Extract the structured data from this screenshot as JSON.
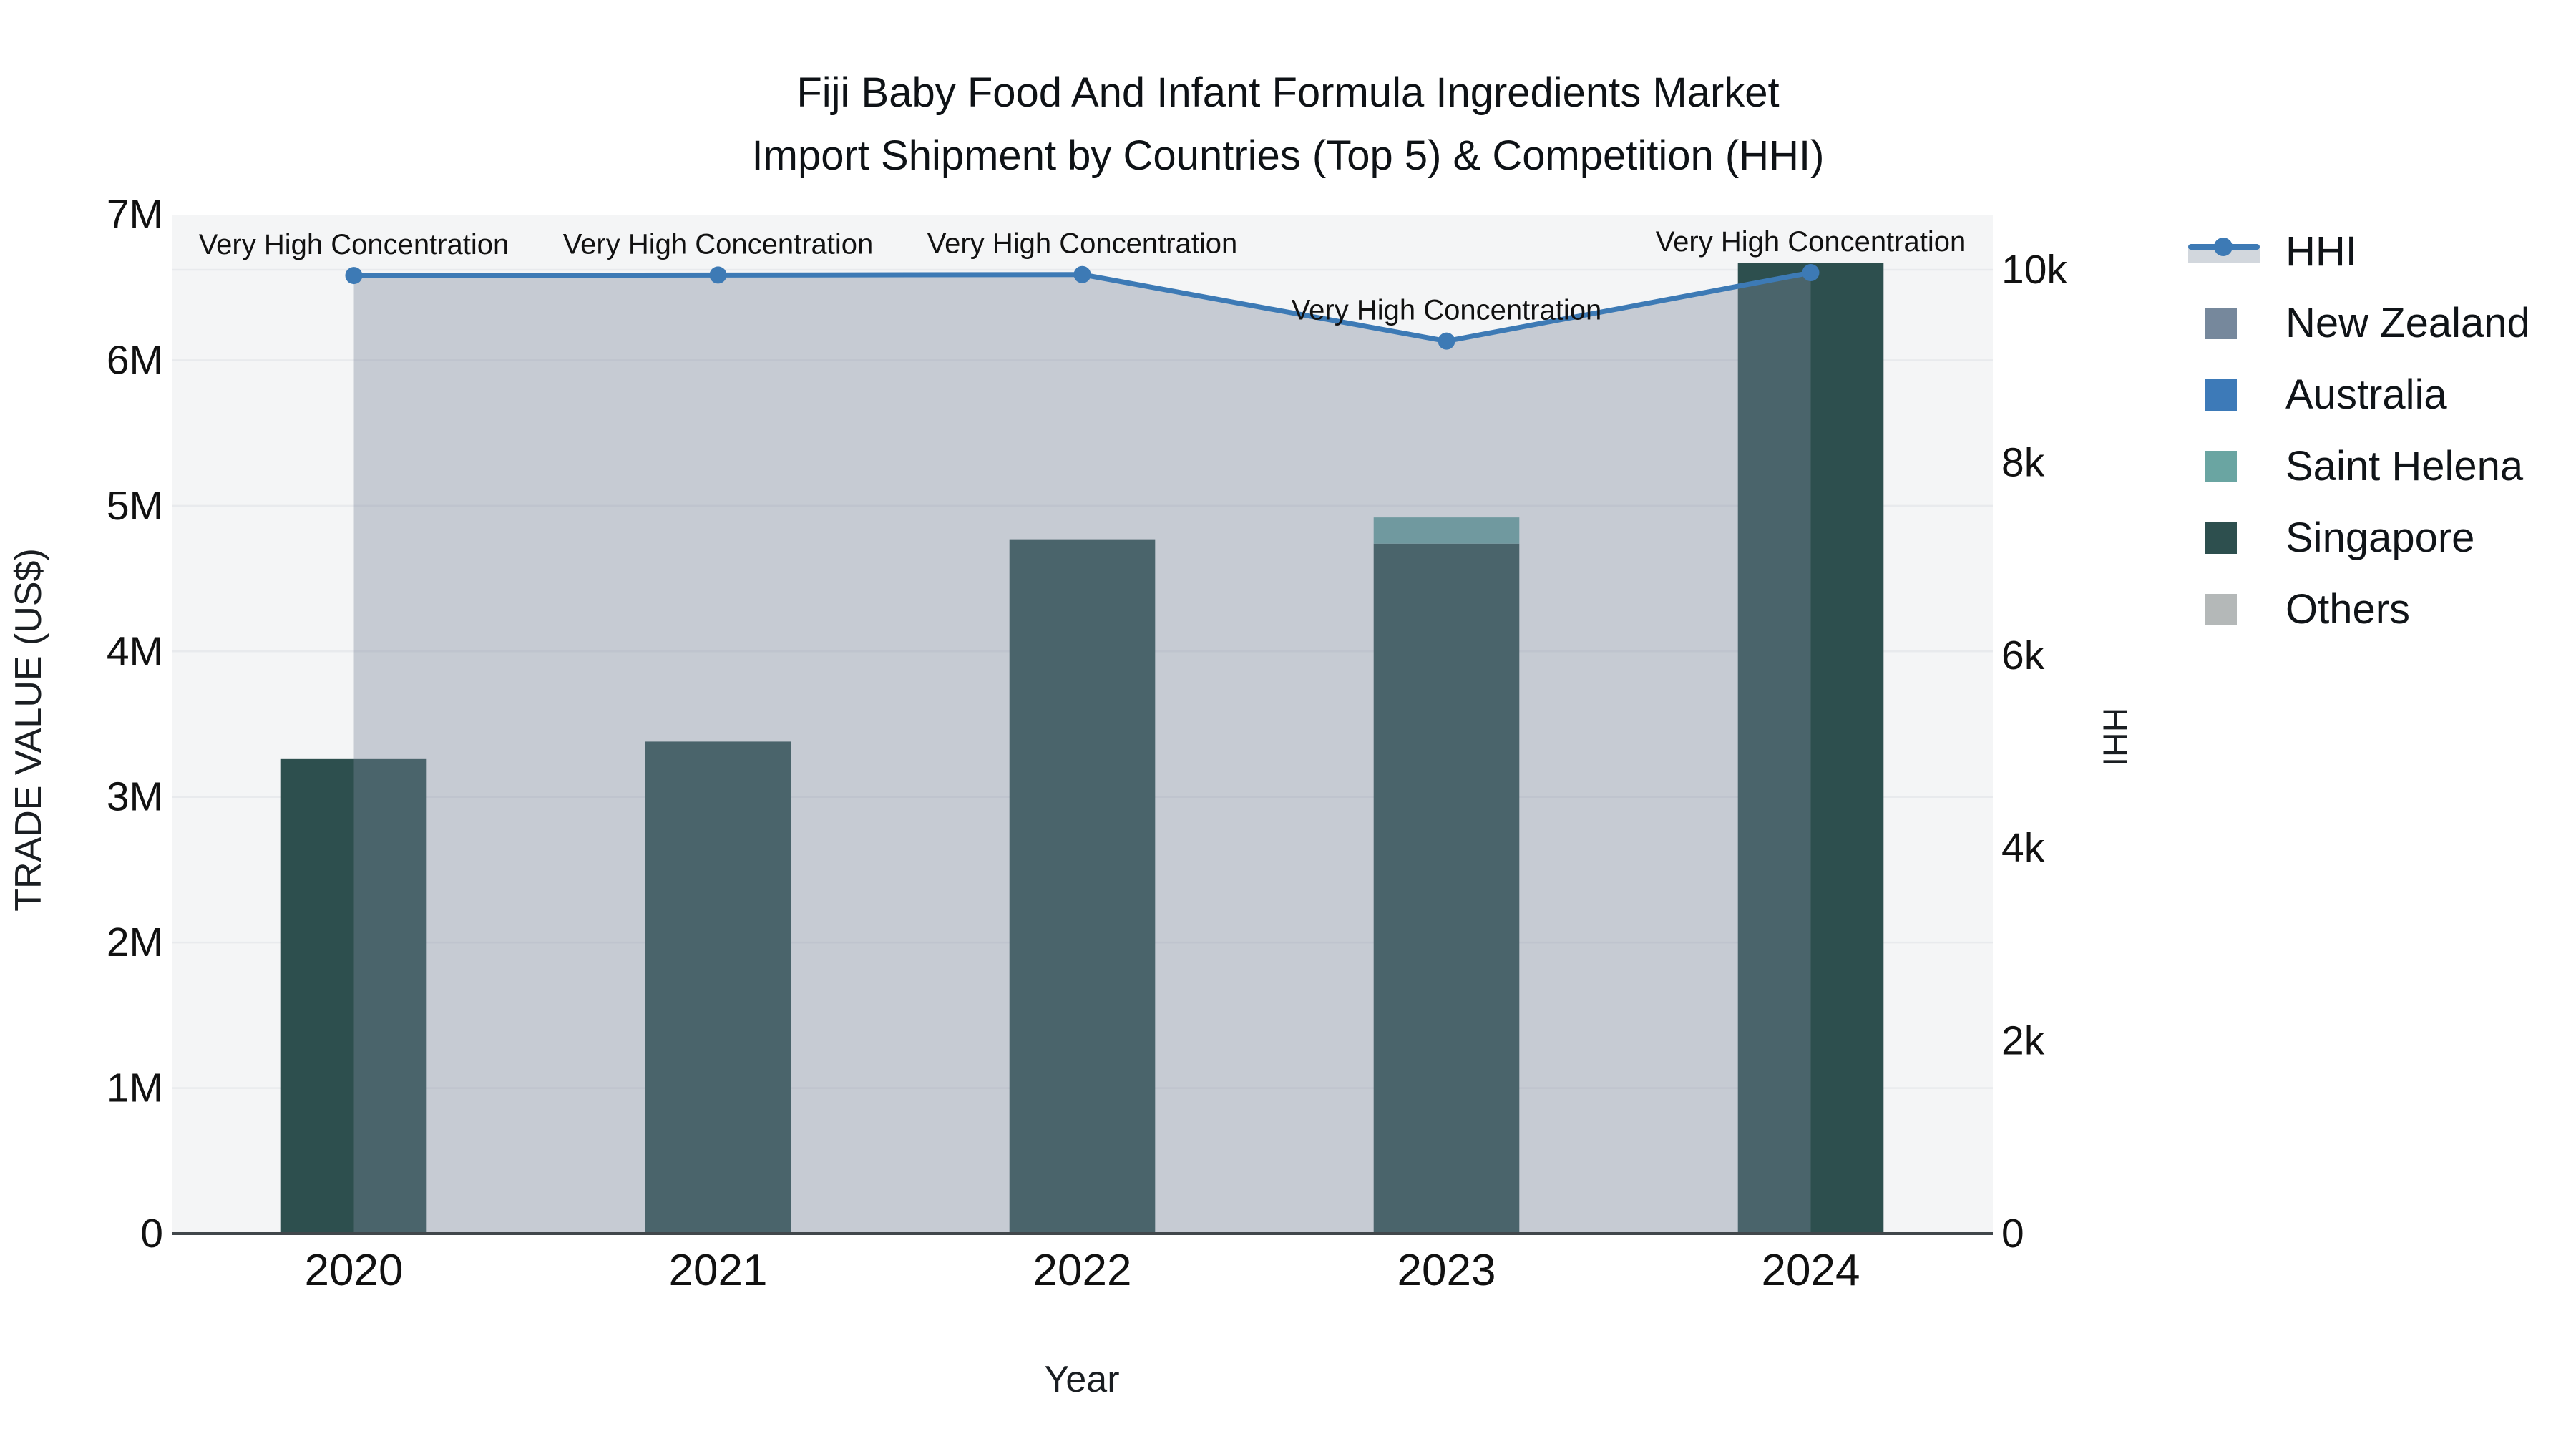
{
  "title": {
    "line1": "Fiji Baby Food And Infant Formula Ingredients Market",
    "line2": "Import Shipment by Countries (Top 5) & Competition (HHI)"
  },
  "axes": {
    "x": {
      "title": "Year"
    },
    "y_left": {
      "title": "TRADE VALUE (US$)",
      "tick_labels": [
        "0",
        "1M",
        "2M",
        "3M",
        "4M",
        "5M",
        "6M",
        "7M"
      ],
      "tick_values": [
        0,
        1000000,
        2000000,
        3000000,
        4000000,
        5000000,
        6000000,
        7000000
      ]
    },
    "y_right": {
      "title": "HHI",
      "tick_labels": [
        "0",
        "2k",
        "4k",
        "6k",
        "8k",
        "10k"
      ],
      "tick_values": [
        0,
        2000,
        4000,
        6000,
        8000,
        10000
      ]
    }
  },
  "legend": {
    "items": [
      {
        "label": "HHI",
        "type": "line",
        "color": "#3d7ab5"
      },
      {
        "label": "New Zealand",
        "type": "swatch",
        "color": "#76889c"
      },
      {
        "label": "Australia",
        "type": "swatch",
        "color": "#3d7ab8"
      },
      {
        "label": "Saint Helena",
        "type": "swatch",
        "color": "#6aa5a2"
      },
      {
        "label": "Singapore",
        "type": "swatch",
        "color": "#2d4f4e"
      },
      {
        "label": "Others",
        "type": "swatch",
        "color": "#b4b8b8"
      }
    ]
  },
  "chart_data": {
    "type": "bar+line",
    "categories": [
      "2020",
      "2021",
      "2022",
      "2023",
      "2024"
    ],
    "bar_stack_order_note": "bottom to top",
    "series": [
      {
        "name": "Singapore",
        "color": "#2d4f4e",
        "values": [
          3260000,
          3380000,
          4770000,
          4740000,
          6670000
        ]
      },
      {
        "name": "Saint Helena",
        "color": "#6aa5a2",
        "values": [
          0,
          0,
          0,
          180000,
          0
        ]
      },
      {
        "name": "New Zealand",
        "color": "#76889c",
        "values": [
          0,
          0,
          0,
          0,
          0
        ]
      },
      {
        "name": "Australia",
        "color": "#3d7ab8",
        "values": [
          0,
          0,
          0,
          0,
          0
        ]
      },
      {
        "name": "Others",
        "color": "#b4b8b8",
        "values": [
          0,
          0,
          0,
          0,
          0
        ]
      }
    ],
    "line_series": {
      "name": "HHI",
      "color": "#3d7ab5",
      "area_fill": "rgba(124,134,156,0.38)",
      "axis": "right",
      "values": [
        9940,
        9945,
        9950,
        9260,
        9970
      ]
    },
    "annotations": [
      "Very High Concentration",
      "Very High Concentration",
      "Very High Concentration",
      "Very High Concentration",
      "Very High Concentration"
    ],
    "xlabel": "Year",
    "ylabel_left": "TRADE VALUE (US$)",
    "ylabel_right": "HHI",
    "ylim_left": [
      0,
      7000000
    ],
    "ylim_right_ticks_max": 10000,
    "plot_bg": "#f4f5f6",
    "grid": true
  }
}
